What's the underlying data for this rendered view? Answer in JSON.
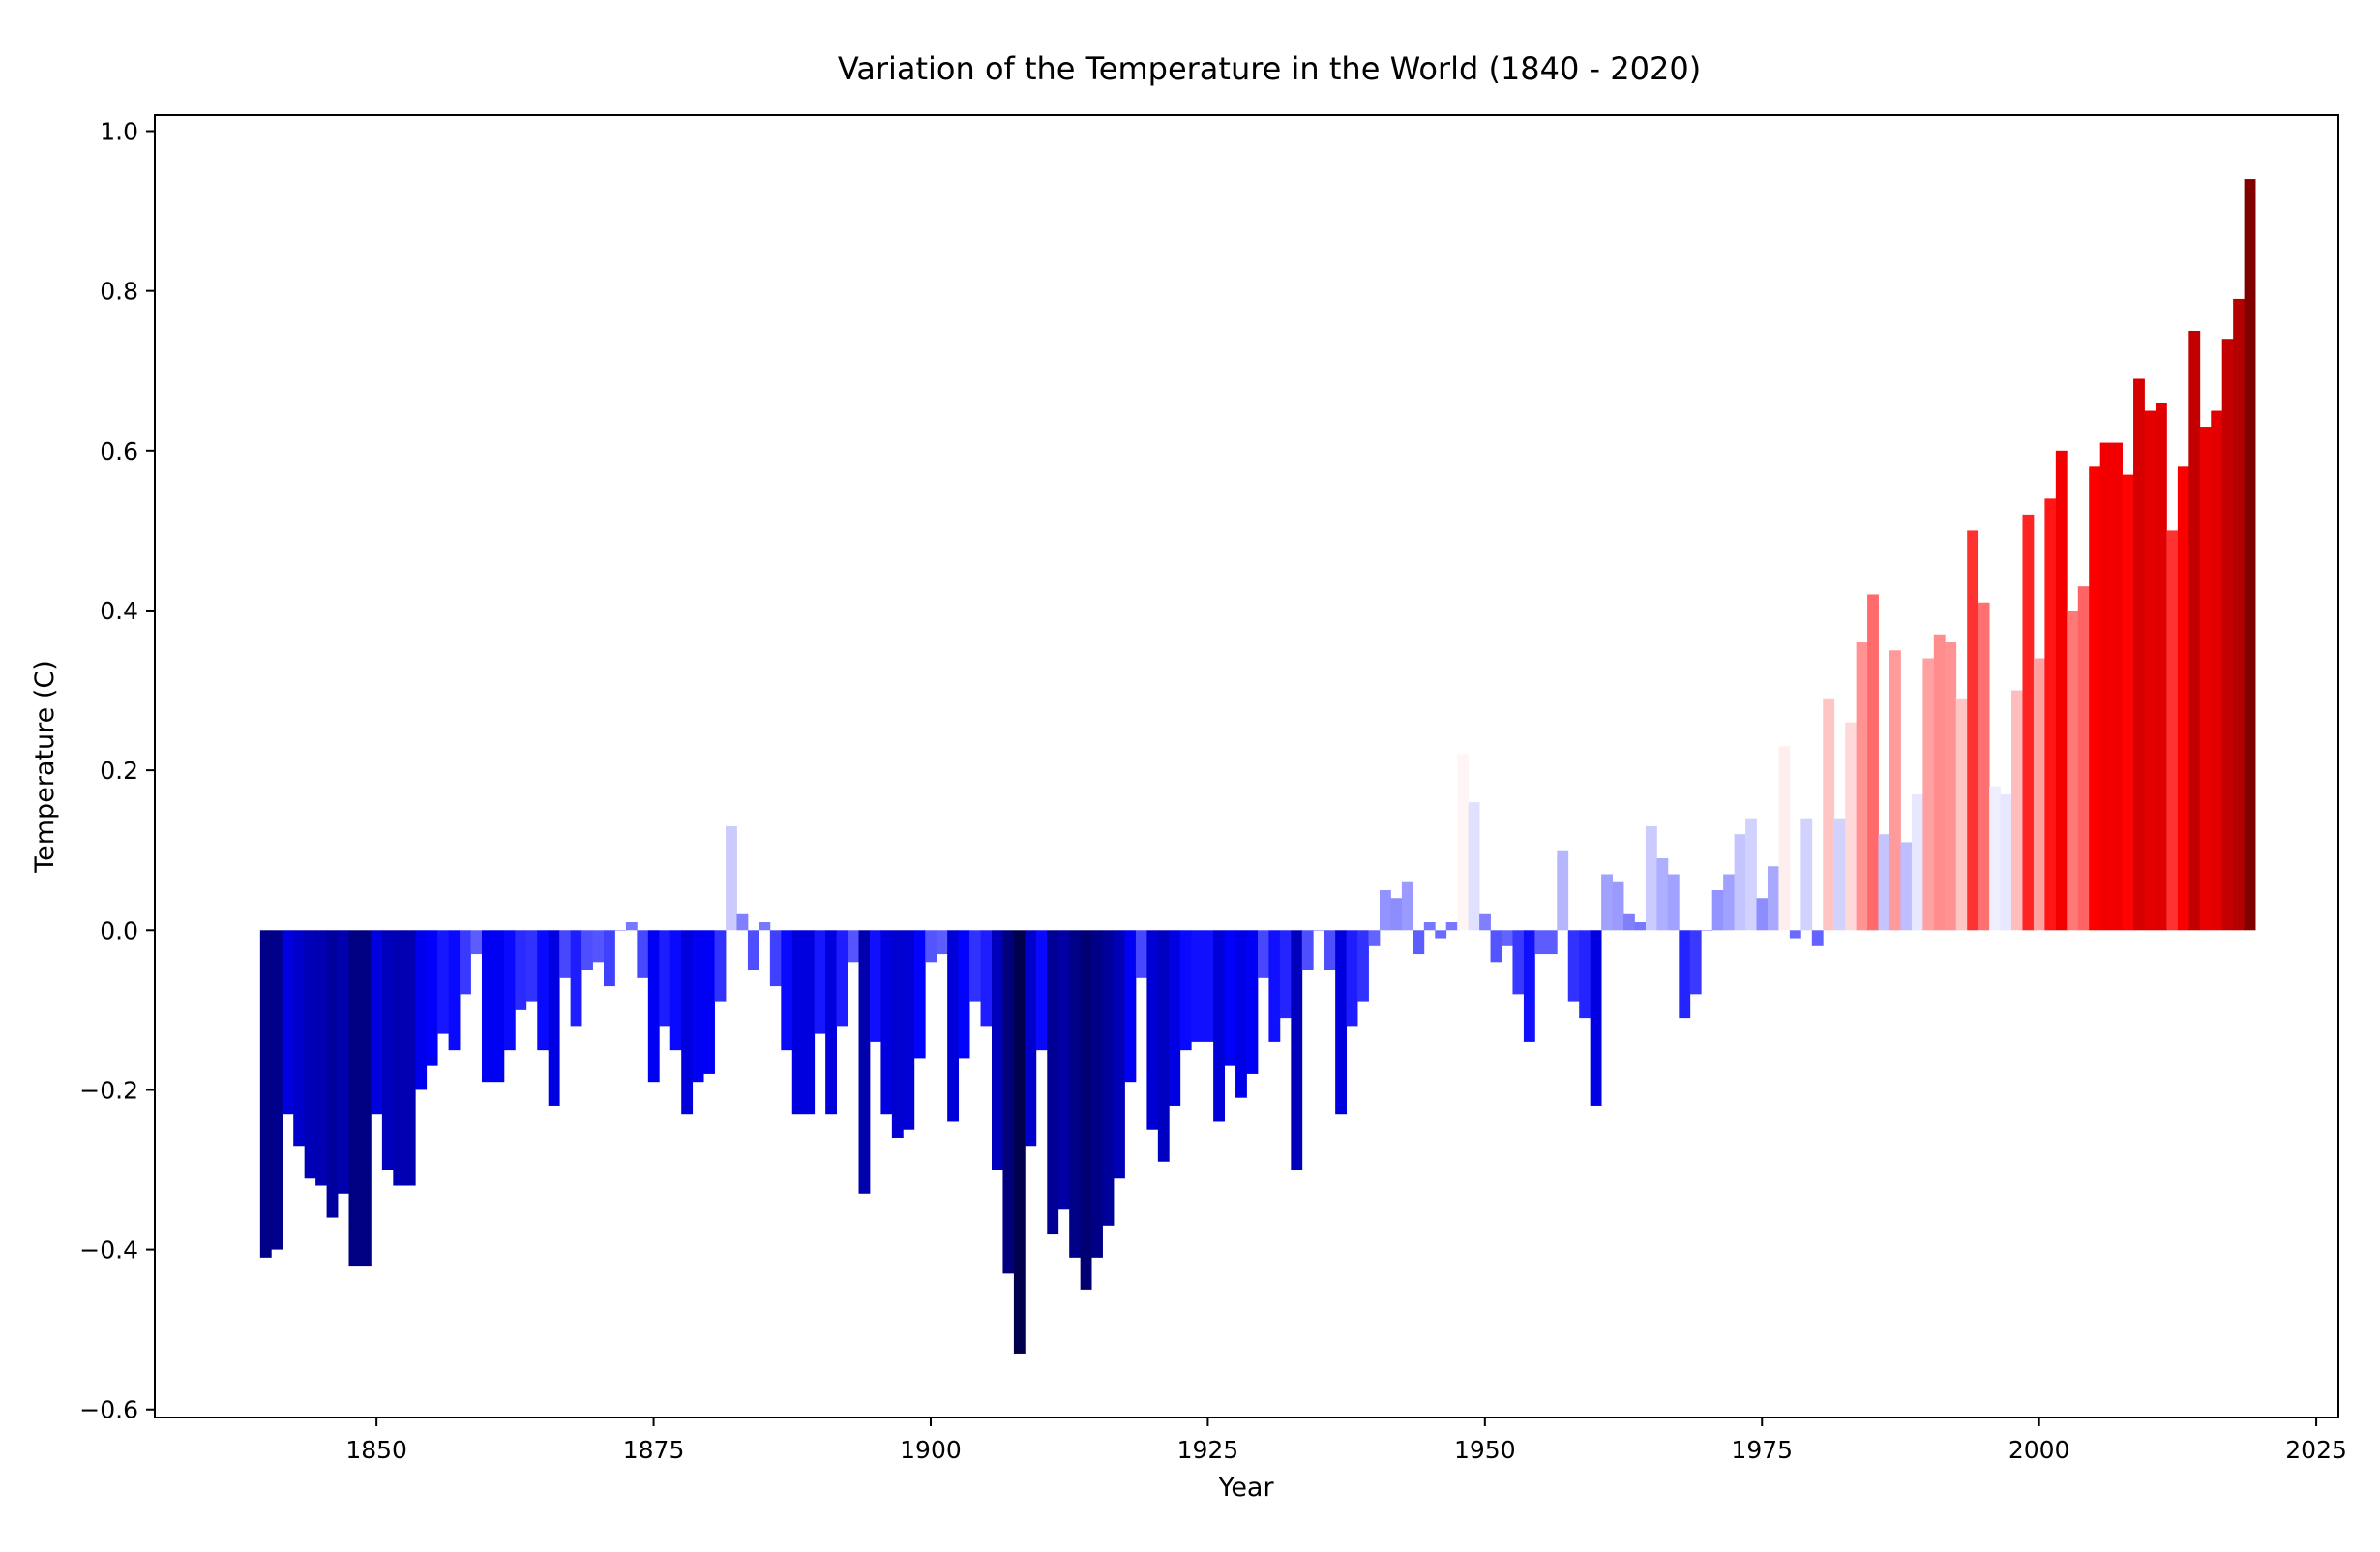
{
  "chart_data": {
    "type": "bar",
    "title": "Variation of the Temperature in the World (1840 - 2020)",
    "xlabel": "Year",
    "ylabel": "Temperature (C)",
    "xlim": [
      1830,
      2027
    ],
    "ylim": [
      -0.61,
      1.02
    ],
    "xticks": [
      1850,
      1875,
      1900,
      1925,
      1950,
      1975,
      2000,
      2025
    ],
    "yticks": [
      -0.6,
      -0.4,
      -0.2,
      0.0,
      0.2,
      0.4,
      0.6,
      0.8,
      1.0
    ],
    "ytick_labels": [
      "−0.6",
      "−0.4",
      "−0.2",
      "0.0",
      "0.2",
      "0.4",
      "0.6",
      "0.8",
      "1.0"
    ],
    "grid": false,
    "legend": "none",
    "colormap": "seismic (blue for cold, red for warm)",
    "colors": {
      "cold_extreme": "#00004c",
      "cold": "#2233ff",
      "neutral": "#ffffff",
      "warm": "#e8402a",
      "warm_extreme": "#8b1a10"
    },
    "x": [
      1840,
      1841,
      1842,
      1843,
      1844,
      1845,
      1846,
      1847,
      1848,
      1849,
      1850,
      1851,
      1852,
      1853,
      1854,
      1855,
      1856,
      1857,
      1858,
      1859,
      1860,
      1861,
      1862,
      1863,
      1864,
      1865,
      1866,
      1867,
      1868,
      1869,
      1870,
      1871,
      1872,
      1873,
      1874,
      1875,
      1876,
      1877,
      1878,
      1879,
      1880,
      1881,
      1882,
      1883,
      1884,
      1885,
      1886,
      1887,
      1888,
      1889,
      1890,
      1891,
      1892,
      1893,
      1894,
      1895,
      1896,
      1897,
      1898,
      1899,
      1900,
      1901,
      1902,
      1903,
      1904,
      1905,
      1906,
      1907,
      1908,
      1909,
      1910,
      1911,
      1912,
      1913,
      1914,
      1915,
      1916,
      1917,
      1918,
      1919,
      1920,
      1921,
      1922,
      1923,
      1924,
      1925,
      1926,
      1927,
      1928,
      1929,
      1930,
      1931,
      1932,
      1933,
      1934,
      1935,
      1936,
      1937,
      1938,
      1939,
      1940,
      1941,
      1942,
      1943,
      1944,
      1945,
      1946,
      1947,
      1948,
      1949,
      1950,
      1951,
      1952,
      1953,
      1954,
      1955,
      1956,
      1957,
      1958,
      1959,
      1960,
      1961,
      1962,
      1963,
      1964,
      1965,
      1966,
      1967,
      1968,
      1969,
      1970,
      1971,
      1972,
      1973,
      1974,
      1975,
      1976,
      1977,
      1978,
      1979,
      1980,
      1981,
      1982,
      1983,
      1984,
      1985,
      1986,
      1987,
      1988,
      1989,
      1990,
      1991,
      1992,
      1993,
      1994,
      1995,
      1996,
      1997,
      1998,
      1999,
      2000,
      2001,
      2002,
      2003,
      2004,
      2005,
      2006,
      2007,
      2008,
      2009,
      2010,
      2011,
      2012,
      2013,
      2014,
      2015,
      2016,
      2017,
      2018,
      2019
    ],
    "values": [
      -0.41,
      -0.4,
      -0.23,
      -0.27,
      -0.31,
      -0.32,
      -0.36,
      -0.33,
      -0.42,
      -0.42,
      -0.23,
      -0.3,
      -0.32,
      -0.32,
      -0.2,
      -0.17,
      -0.13,
      -0.15,
      -0.08,
      -0.03,
      -0.19,
      -0.19,
      -0.15,
      -0.1,
      -0.09,
      -0.15,
      -0.22,
      -0.06,
      -0.12,
      -0.05,
      -0.04,
      -0.07,
      0.0,
      0.01,
      -0.06,
      -0.19,
      -0.12,
      -0.15,
      -0.23,
      -0.19,
      -0.18,
      -0.09,
      0.13,
      0.02,
      -0.05,
      0.01,
      -0.07,
      -0.15,
      -0.23,
      -0.23,
      -0.13,
      -0.23,
      -0.12,
      -0.04,
      -0.33,
      -0.14,
      -0.23,
      -0.26,
      -0.25,
      -0.16,
      -0.04,
      -0.03,
      -0.24,
      -0.16,
      -0.09,
      -0.12,
      -0.3,
      -0.43,
      -0.53,
      -0.27,
      -0.15,
      -0.38,
      -0.35,
      -0.41,
      -0.45,
      -0.41,
      -0.37,
      -0.31,
      -0.19,
      -0.06,
      -0.25,
      -0.29,
      -0.22,
      -0.15,
      -0.14,
      -0.14,
      -0.24,
      -0.17,
      -0.21,
      -0.18,
      -0.06,
      -0.14,
      -0.11,
      -0.3,
      -0.05,
      0.0,
      -0.05,
      -0.23,
      -0.12,
      -0.09,
      -0.02,
      0.05,
      0.04,
      0.06,
      -0.03,
      0.01,
      -0.01,
      0.01,
      0.22,
      0.16,
      0.02,
      -0.04,
      -0.02,
      -0.08,
      -0.14,
      -0.03,
      -0.03,
      0.1,
      -0.09,
      -0.11,
      -0.22,
      0.07,
      0.06,
      0.02,
      0.01,
      0.13,
      0.09,
      0.07,
      -0.11,
      -0.08,
      0.0,
      0.05,
      0.07,
      0.12,
      0.14,
      0.04,
      0.08,
      0.23,
      -0.01,
      0.14,
      -0.02,
      0.29,
      0.14,
      0.26,
      0.36,
      0.42,
      0.12,
      0.35,
      0.11,
      0.17,
      0.34,
      0.37,
      0.36,
      0.29,
      0.5,
      0.41,
      0.18,
      0.17,
      0.3,
      0.52,
      0.34,
      0.54,
      0.6,
      0.4,
      0.43,
      0.58,
      0.61,
      0.61,
      0.57,
      0.69,
      0.65,
      0.66,
      0.5,
      0.58,
      0.75,
      0.63,
      0.65,
      0.74,
      0.79,
      0.94
    ]
  }
}
